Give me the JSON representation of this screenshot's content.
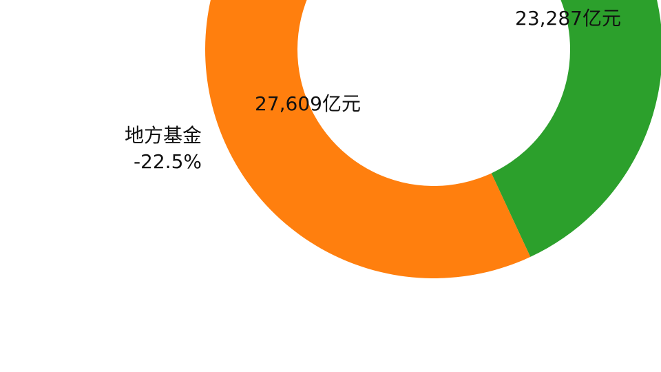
{
  "chart_data": {
    "type": "pie",
    "style": "donut",
    "slices": [
      {
        "value_label": "23,287亿元",
        "color": "#2ca02c"
      },
      {
        "value_label": "27,609亿元",
        "outside_label": "地方基金",
        "change_label": "-22.5%",
        "color": "#ff7f0e"
      }
    ]
  }
}
